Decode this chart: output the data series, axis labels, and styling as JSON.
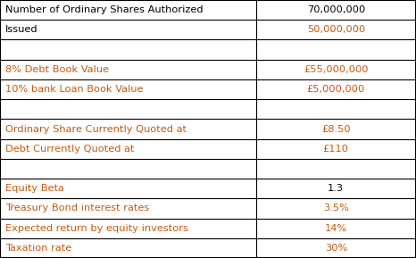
{
  "rows": [
    {
      "label": "Number of Ordinary Shares Authorized",
      "value": "70,000,000",
      "label_color": "#000000",
      "value_color": "#000000",
      "empty": false
    },
    {
      "label": "Issued",
      "value": "50,000,000",
      "label_color": "#000000",
      "value_color": "#C55A11",
      "empty": false
    },
    {
      "label": "",
      "value": "",
      "label_color": "#000000",
      "value_color": "#000000",
      "empty": true
    },
    {
      "label": "8% Debt Book Value",
      "value": "£55,000,000",
      "label_color": "#C55A11",
      "value_color": "#C55A11",
      "empty": false
    },
    {
      "label": "10% bank Loan Book Value",
      "value": "£5,000,000",
      "label_color": "#C55A11",
      "value_color": "#C55A11",
      "empty": false
    },
    {
      "label": "",
      "value": "",
      "label_color": "#000000",
      "value_color": "#000000",
      "empty": true
    },
    {
      "label": "Ordinary Share Currently Quoted at",
      "value": "£8.50",
      "label_color": "#C55A11",
      "value_color": "#C55A11",
      "empty": false
    },
    {
      "label": "Debt Currently Quoted at",
      "value": "£110",
      "label_color": "#C55A11",
      "value_color": "#C55A11",
      "empty": false
    },
    {
      "label": "",
      "value": "",
      "label_color": "#000000",
      "value_color": "#000000",
      "empty": true
    },
    {
      "label": "Equity Beta",
      "value": "1.3",
      "label_color": "#C55A11",
      "value_color": "#000000",
      "empty": false
    },
    {
      "label": "Treasury Bond interest rates",
      "value": "3.5%",
      "label_color": "#C55A11",
      "value_color": "#C55A11",
      "empty": false
    },
    {
      "label": "Expected return by equity investors",
      "value": "14%",
      "label_color": "#C55A11",
      "value_color": "#C55A11",
      "empty": false
    },
    {
      "label": "Taxation rate",
      "value": "30%",
      "label_color": "#C55A11",
      "value_color": "#C55A11",
      "empty": false
    }
  ],
  "col_split": 0.615,
  "border_color": "#000000",
  "bg_color": "#FFFFFF",
  "font_size": 8.2,
  "fig_width": 4.66,
  "fig_height": 2.89,
  "dpi": 100
}
